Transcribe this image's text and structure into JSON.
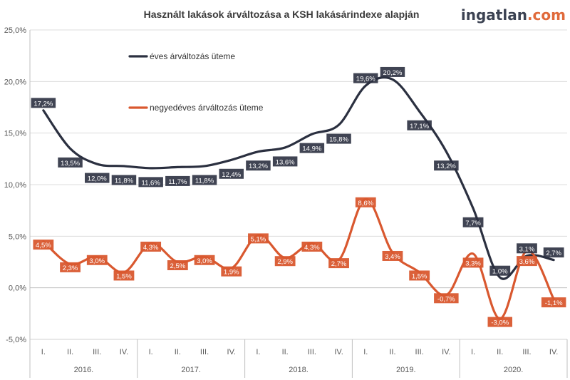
{
  "brand": {
    "main": "ingatlan",
    "suffix": ".com",
    "main_color": "#3b4252",
    "suffix_color": "#e06a3b"
  },
  "chart_data": {
    "type": "line",
    "title": "Használt lakások árváltozása a KSH lakásárindexe alapján",
    "ylim": [
      -5,
      25
    ],
    "yticks": [
      -5,
      0,
      5,
      10,
      15,
      20,
      25
    ],
    "ytick_labels": [
      "-5,0%",
      "0,0%",
      "5,0%",
      "10,0%",
      "15,0%",
      "20,0%",
      "25,0%"
    ],
    "quarters": [
      "I.",
      "II.",
      "III.",
      "IV.",
      "I.",
      "II.",
      "III.",
      "IV.",
      "I.",
      "II.",
      "III.",
      "IV.",
      "I.",
      "II.",
      "III.",
      "IV.",
      "I.",
      "II.",
      "III.",
      "IV."
    ],
    "years": [
      "2016.",
      "2017.",
      "2018.",
      "2019.",
      "2020."
    ],
    "grid": true,
    "legend_position": "top-left",
    "series": [
      {
        "name": "éves árváltozás üteme",
        "color": "#2b3040",
        "values": [
          17.2,
          13.5,
          12.0,
          11.8,
          11.6,
          11.7,
          11.8,
          12.4,
          13.2,
          13.6,
          14.9,
          15.8,
          19.6,
          20.2,
          17.1,
          13.2,
          7.7,
          1.0,
          3.1,
          2.7
        ],
        "labels": [
          "17,2%",
          "13,5%",
          "12,0%",
          "11,8%",
          "11,6%",
          "11,7%",
          "11,8%",
          "12,4%",
          "13,2%",
          "13,6%",
          "14,9%",
          "15,8%",
          "19,6%",
          "20,2%",
          "17,1%",
          "13,2%",
          "7,7%",
          "1,0%",
          "3,1%",
          "2,7%"
        ]
      },
      {
        "name": "negyedéves árváltozás üteme",
        "color": "#d9582f",
        "values": [
          4.5,
          2.3,
          3.0,
          1.5,
          4.3,
          2.5,
          3.0,
          1.9,
          5.1,
          2.9,
          4.3,
          2.7,
          8.6,
          3.4,
          1.5,
          -0.7,
          3.3,
          -3.0,
          3.6,
          -1.1
        ],
        "labels": [
          "4,5%",
          "2,3%",
          "3,0%",
          "1,5%",
          "4,3%",
          "2,5%",
          "3,0%",
          "1,9%",
          "5,1%",
          "2,9%",
          "4,3%",
          "2,7%",
          "8,6%",
          "3,4%",
          "1,5%",
          "-0,7%",
          "3,3%",
          "-3,0%",
          "3,6%",
          "-1,1%"
        ]
      }
    ]
  }
}
